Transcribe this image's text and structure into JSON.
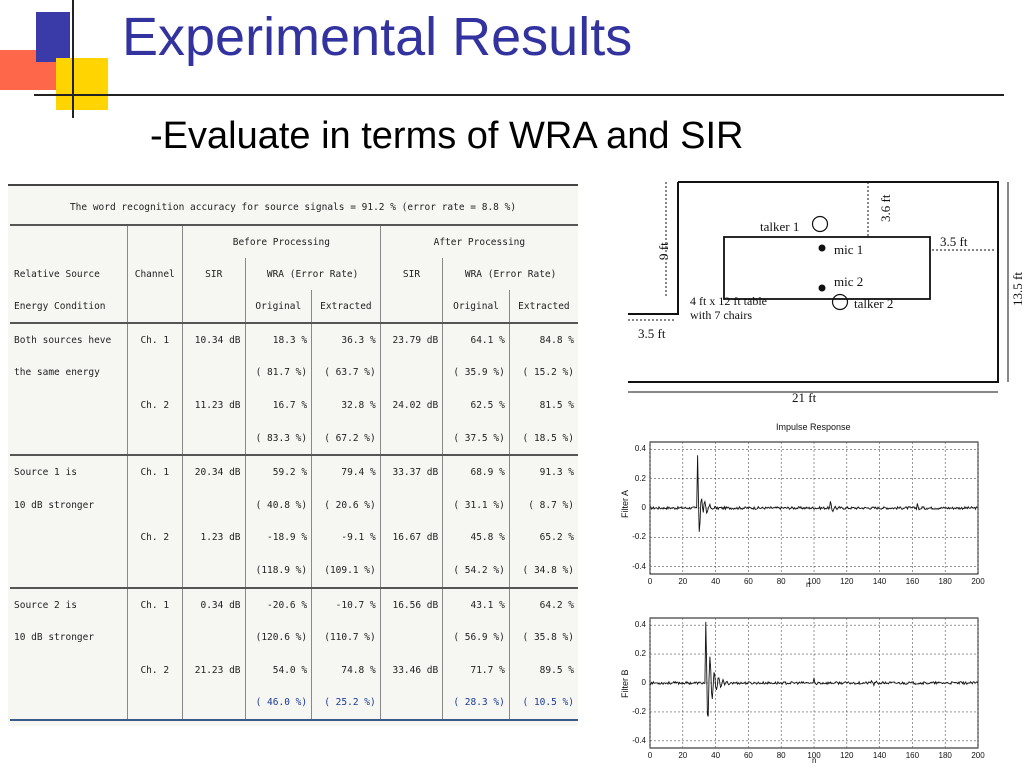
{
  "title": "Experimental Results",
  "subtitle": "-Evaluate in terms of WRA and SIR",
  "table": {
    "caption": "The word recognition accuracy for source signals = 91.2 % (error rate = 8.8 %)",
    "group_before": "Before Processing",
    "group_after": "After Processing",
    "col_rel_1": "Relative Source",
    "col_rel_2": "Energy Condition",
    "col_channel": "Channel",
    "col_sir": "SIR",
    "col_wra": "WRA (Error Rate)",
    "col_original": "Original",
    "col_extracted": "Extracted",
    "rows": [
      [
        "Both sources heve",
        "Ch. 1",
        "10.34 dB",
        "18.3 %",
        "36.3 %",
        "23.79 dB",
        "64.1 %",
        "84.8 %"
      ],
      [
        "the same energy",
        "",
        "",
        "( 81.7 %)",
        "( 63.7 %)",
        "",
        "( 35.9 %)",
        "( 15.2 %)"
      ],
      [
        "",
        "Ch. 2",
        "11.23 dB",
        "16.7 %",
        "32.8 %",
        "24.02 dB",
        "62.5 %",
        "81.5 %"
      ],
      [
        "",
        "",
        "",
        "( 83.3 %)",
        "( 67.2 %)",
        "",
        "( 37.5 %)",
        "( 18.5 %)"
      ],
      [
        "Source 1 is",
        "Ch. 1",
        "20.34 dB",
        "59.2 %",
        "79.4 %",
        "33.37 dB",
        "68.9 %",
        "91.3 %"
      ],
      [
        "10 dB stronger",
        "",
        "",
        "( 40.8 %)",
        "( 20.6 %)",
        "",
        "( 31.1 %)",
        "( 8.7 %)"
      ],
      [
        "",
        "Ch. 2",
        "1.23 dB",
        "-18.9 %",
        "-9.1 %",
        "16.67 dB",
        "45.8 %",
        "65.2 %"
      ],
      [
        "",
        "",
        "",
        "(118.9 %)",
        "(109.1 %)",
        "",
        "( 54.2 %)",
        "( 34.8 %)"
      ],
      [
        "Source 2 is",
        "Ch. 1",
        "0.34 dB",
        "-20.6 %",
        "-10.7 %",
        "16.56 dB",
        "43.1 %",
        "64.2 %"
      ],
      [
        "10 dB stronger",
        "",
        "",
        "(120.6 %)",
        "(110.7 %)",
        "",
        "( 56.9 %)",
        "( 35.8 %)"
      ],
      [
        "",
        "Ch. 2",
        "21.23 dB",
        "54.0 %",
        "74.8 %",
        "33.46 dB",
        "71.7 %",
        "89.5 %"
      ],
      [
        "",
        "",
        "",
        "( 46.0 %)",
        "( 25.2 %)",
        "",
        "( 28.3 %)",
        "( 10.5 %)"
      ]
    ]
  },
  "room": {
    "talker1": "talker 1",
    "talker2": "talker 2",
    "mic1": "mic 1",
    "mic2": "mic 2",
    "table_line1": "4 ft x 12 ft table",
    "table_line2": "with 7 chairs",
    "dim_9ft": "9 ft",
    "dim_36ft": "3.6 ft",
    "dim_35ft_right": "3.5 ft",
    "dim_135ft": "13.5 ft",
    "dim_35ft_left": "3.5 ft",
    "dim_21ft": "21 ft"
  },
  "plots": {
    "title": "Impulse Response",
    "ylabel_a": "Filter A",
    "ylabel_b": "Filter B",
    "xlabel": "n",
    "yticks": [
      "0.4",
      "0.2",
      "0",
      "-0.2",
      "-0.4"
    ],
    "xticks": [
      "0",
      "20",
      "40",
      "60",
      "80",
      "100",
      "120",
      "140",
      "160",
      "180",
      "200"
    ]
  },
  "colors": {
    "title": "#3333a0",
    "accent_blue": "#3a3aa8",
    "accent_yellow": "#ffd400",
    "accent_red": "#ff5a3c"
  }
}
